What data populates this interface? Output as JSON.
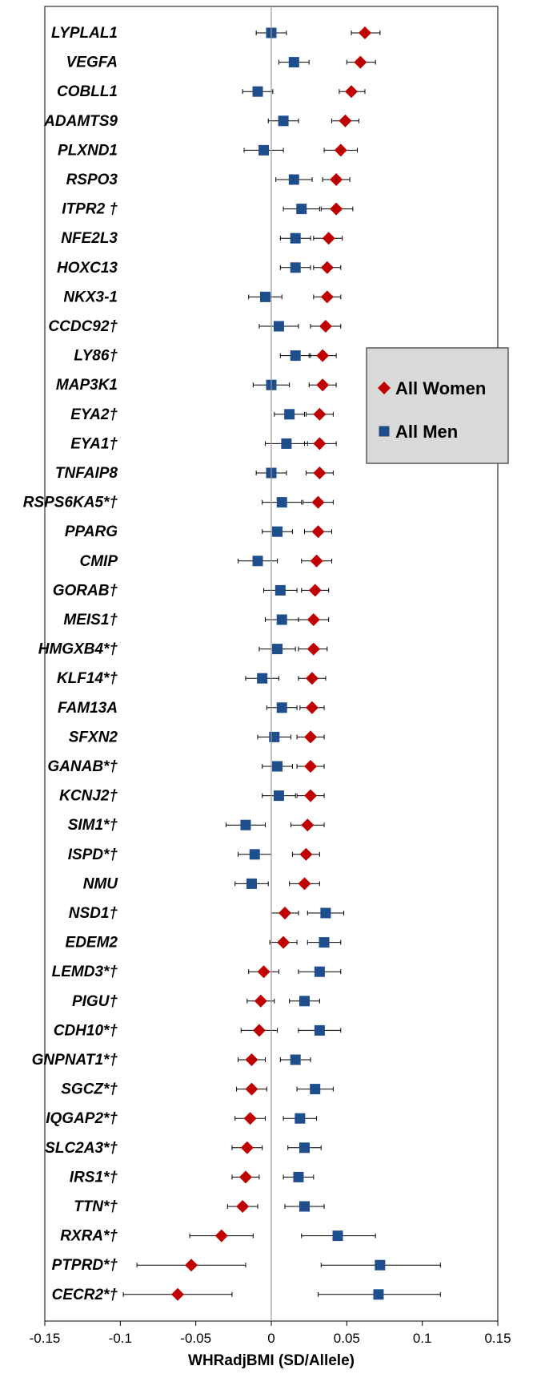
{
  "chart_data": {
    "type": "scatter",
    "subtype": "forest-plot",
    "title": "",
    "xlabel": "WHRadjBMI (SD/Allele)",
    "ylabel": "",
    "xlim": [
      -0.15,
      0.15
    ],
    "xticks": [
      "-0.15",
      "-0.1",
      "-0.05",
      "0",
      "0.05",
      "0.1",
      "0.15"
    ],
    "grid": false,
    "legend_position": "right",
    "colors": {
      "women": "#c00000",
      "men": "#1f4e8c"
    },
    "categories": [
      "LYPLAL1",
      "VEGFA",
      "COBLL1",
      "ADAMTS9",
      "PLXND1",
      "RSPO3",
      "ITPR2 †",
      "NFE2L3",
      "HOXC13",
      "NKX3-1",
      "CCDC92†",
      "LY86†",
      "MAP3K1",
      "EYA2†",
      "EYA1†",
      "TNFAIP8",
      "RSPS6KA5*†",
      "PPARG",
      "CMIP",
      "GORAB†",
      "MEIS1†",
      "HMGXB4*†",
      "KLF14*†",
      "FAM13A",
      "SFXN2",
      "GANAB*†",
      "KCNJ2†",
      "SIM1*†",
      "ISPD*†",
      "NMU",
      "NSD1†",
      "EDEM2",
      "LEMD3*†",
      "PIGU†",
      "CDH10*†",
      "GNPNAT1*†",
      "SGCZ*†",
      "IQGAP2*†",
      "SLC2A3*†",
      "IRS1*†",
      "TTN*†",
      "RXRA*†",
      "PTPRD*†",
      "CECR2*†"
    ],
    "series": [
      {
        "name": "All Women",
        "marker": "diamond",
        "values": [
          0.062,
          0.059,
          0.053,
          0.049,
          0.046,
          0.043,
          0.043,
          0.038,
          0.037,
          0.037,
          0.036,
          0.034,
          0.034,
          0.032,
          0.032,
          0.032,
          0.031,
          0.031,
          0.03,
          0.029,
          0.028,
          0.028,
          0.027,
          0.027,
          0.026,
          0.026,
          0.026,
          0.024,
          0.023,
          0.022,
          0.009,
          0.008,
          -0.005,
          -0.007,
          -0.008,
          -0.013,
          -0.013,
          -0.014,
          -0.016,
          -0.017,
          -0.019,
          -0.033,
          -0.053,
          -0.062
        ],
        "ci_low": [
          0.053,
          0.05,
          0.045,
          0.04,
          0.035,
          0.034,
          0.033,
          0.028,
          0.028,
          0.028,
          0.026,
          0.025,
          0.025,
          0.023,
          0.022,
          0.023,
          0.021,
          0.022,
          0.02,
          0.02,
          0.018,
          0.018,
          0.018,
          0.019,
          0.017,
          0.017,
          0.017,
          0.013,
          0.014,
          0.012,
          0.0,
          -0.001,
          -0.015,
          -0.016,
          -0.02,
          -0.022,
          -0.023,
          -0.024,
          -0.026,
          -0.026,
          -0.029,
          -0.054,
          -0.089,
          -0.098
        ],
        "ci_high": [
          0.072,
          0.069,
          0.062,
          0.058,
          0.057,
          0.052,
          0.054,
          0.047,
          0.046,
          0.046,
          0.046,
          0.043,
          0.043,
          0.041,
          0.043,
          0.041,
          0.041,
          0.04,
          0.04,
          0.038,
          0.038,
          0.037,
          0.036,
          0.035,
          0.035,
          0.035,
          0.035,
          0.035,
          0.032,
          0.032,
          0.018,
          0.017,
          0.005,
          0.002,
          0.004,
          -0.004,
          -0.003,
          -0.004,
          -0.006,
          -0.008,
          -0.009,
          -0.012,
          -0.017,
          -0.026
        ]
      },
      {
        "name": "All Men",
        "marker": "square",
        "values": [
          0.0,
          0.015,
          -0.009,
          0.008,
          -0.005,
          0.015,
          0.02,
          0.016,
          0.016,
          -0.004,
          0.005,
          0.016,
          0.0,
          0.012,
          0.01,
          0.0,
          0.007,
          0.004,
          -0.009,
          0.006,
          0.007,
          0.004,
          -0.006,
          0.007,
          0.002,
          0.004,
          0.005,
          -0.017,
          -0.011,
          -0.013,
          0.036,
          0.035,
          0.032,
          0.022,
          0.032,
          0.016,
          0.029,
          0.019,
          0.022,
          0.018,
          0.022,
          0.044,
          0.072,
          0.071
        ],
        "ci_low": [
          -0.01,
          0.005,
          -0.019,
          -0.002,
          -0.018,
          0.003,
          0.008,
          0.006,
          0.006,
          -0.015,
          -0.008,
          0.006,
          -0.012,
          0.002,
          -0.004,
          -0.01,
          -0.006,
          -0.006,
          -0.022,
          -0.005,
          -0.004,
          -0.008,
          -0.017,
          -0.003,
          -0.009,
          -0.006,
          -0.006,
          -0.03,
          -0.022,
          -0.024,
          0.024,
          0.024,
          0.018,
          0.012,
          0.018,
          0.006,
          0.017,
          0.008,
          0.011,
          0.008,
          0.009,
          0.02,
          0.033,
          0.031
        ],
        "ci_high": [
          0.01,
          0.025,
          0.001,
          0.018,
          0.008,
          0.027,
          0.032,
          0.026,
          0.026,
          0.007,
          0.018,
          0.026,
          0.012,
          0.022,
          0.024,
          0.01,
          0.02,
          0.014,
          0.004,
          0.017,
          0.018,
          0.016,
          0.005,
          0.017,
          0.013,
          0.014,
          0.016,
          -0.004,
          0.0,
          -0.002,
          0.048,
          0.046,
          0.046,
          0.032,
          0.046,
          0.026,
          0.041,
          0.03,
          0.033,
          0.028,
          0.035,
          0.069,
          0.112,
          0.112
        ]
      }
    ]
  }
}
